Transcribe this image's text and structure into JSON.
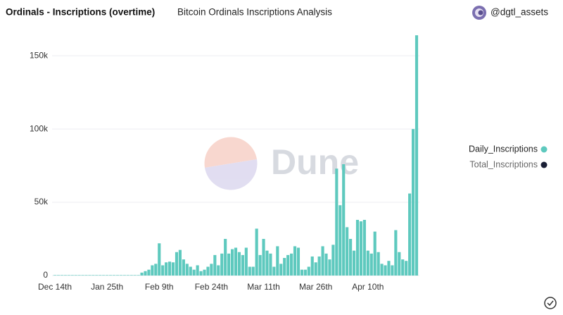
{
  "header": {
    "title": "Ordinals - Inscriptions (overtime)",
    "subtitle": "Bitcoin Ordinals Inscriptions Analysis",
    "user": "@dgtl_assets"
  },
  "watermark": "Dune",
  "chart_data": {
    "type": "bar",
    "categories": [
      "Dec 14th",
      null,
      null,
      null,
      null,
      null,
      null,
      null,
      null,
      null,
      null,
      null,
      null,
      null,
      null,
      "Jan 25th",
      null,
      null,
      null,
      null,
      null,
      null,
      null,
      null,
      null,
      null,
      null,
      null,
      null,
      null,
      "Feb 9th",
      null,
      null,
      null,
      null,
      null,
      null,
      null,
      null,
      null,
      null,
      null,
      null,
      null,
      null,
      "Feb 24th",
      null,
      null,
      null,
      null,
      null,
      null,
      null,
      null,
      null,
      null,
      null,
      null,
      null,
      null,
      "Mar 11th",
      null,
      null,
      null,
      null,
      null,
      null,
      null,
      null,
      null,
      null,
      null,
      null,
      null,
      null,
      "Mar 26th",
      null,
      null,
      null,
      null,
      null,
      null,
      null,
      null,
      null,
      null,
      null,
      null,
      null,
      null,
      "Apr 10th",
      null,
      null,
      null,
      null,
      null,
      null,
      null,
      null,
      null,
      null,
      null,
      null,
      null,
      null
    ],
    "series": [
      {
        "name": "Daily_Inscriptions",
        "color": "#5ec9be",
        "values": [
          300,
          300,
          300,
          300,
          300,
          300,
          300,
          300,
          300,
          300,
          300,
          300,
          300,
          300,
          300,
          300,
          300,
          300,
          300,
          300,
          300,
          300,
          300,
          300,
          300,
          2000,
          3000,
          4000,
          7000,
          8000,
          22000,
          7000,
          9000,
          9500,
          9000,
          16000,
          17500,
          11000,
          8000,
          6000,
          4000,
          7000,
          3000,
          4000,
          6000,
          8000,
          14000,
          7000,
          15000,
          25000,
          15000,
          18000,
          19000,
          16000,
          14000,
          19000,
          6000,
          6000,
          32000,
          14000,
          25000,
          17000,
          15000,
          6000,
          20000,
          8000,
          12000,
          14000,
          15000,
          20000,
          19000,
          4000,
          4000,
          6000,
          13000,
          9000,
          13000,
          20000,
          15000,
          11000,
          21000,
          73000,
          48000,
          76000,
          33000,
          25000,
          17000,
          38000,
          37000,
          38000,
          17000,
          15000,
          30000,
          16000,
          8000,
          7000,
          10000,
          7000,
          31000,
          16000,
          11000,
          10000,
          56000,
          100000,
          164000
        ]
      },
      {
        "name": "Total_Inscriptions",
        "color": "#1a1f36"
      }
    ],
    "ylim": [
      0,
      165000
    ],
    "yticks": [
      0,
      {
        "value": 50000,
        "label": "50k"
      },
      {
        "value": 100000,
        "label": "100k"
      },
      {
        "value": 150000,
        "label": "150k"
      }
    ],
    "grid": true
  }
}
